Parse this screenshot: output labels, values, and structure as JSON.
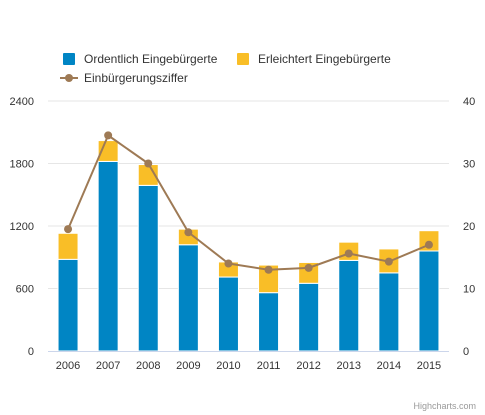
{
  "chart_data": {
    "type": "bar",
    "stacked": true,
    "categories": [
      "2006",
      "2007",
      "2008",
      "2009",
      "2010",
      "2011",
      "2012",
      "2013",
      "2014",
      "2015"
    ],
    "series": [
      {
        "name": "Ordentlich Eingebürgerte",
        "kind": "bar",
        "axis": "left",
        "color": "#0085C4",
        "values": [
          880,
          1820,
          1590,
          1020,
          710,
          560,
          650,
          870,
          750,
          960
        ]
      },
      {
        "name": "Erleichtert Eingebürgerte",
        "kind": "bar",
        "axis": "left",
        "color": "#F9BE27",
        "values": [
          250,
          200,
          200,
          150,
          145,
          265,
          200,
          175,
          230,
          195
        ]
      },
      {
        "name": "Einbürgerungsziffer",
        "kind": "line",
        "axis": "right",
        "color": "#9E7A55",
        "values": [
          19.5,
          34.5,
          30,
          19,
          14,
          13,
          13.3,
          15.6,
          14.3,
          17
        ]
      }
    ],
    "yAxisLeft": {
      "min": 0,
      "max": 2400,
      "ticks": [
        "0",
        "600",
        "1200",
        "1800",
        "2400"
      ]
    },
    "yAxisRight": {
      "min": 0,
      "max": 40,
      "ticks": [
        "0",
        "10",
        "20",
        "30",
        "40"
      ]
    },
    "grid": true,
    "legend_position": "top-left"
  },
  "credits": "Highcharts.com"
}
